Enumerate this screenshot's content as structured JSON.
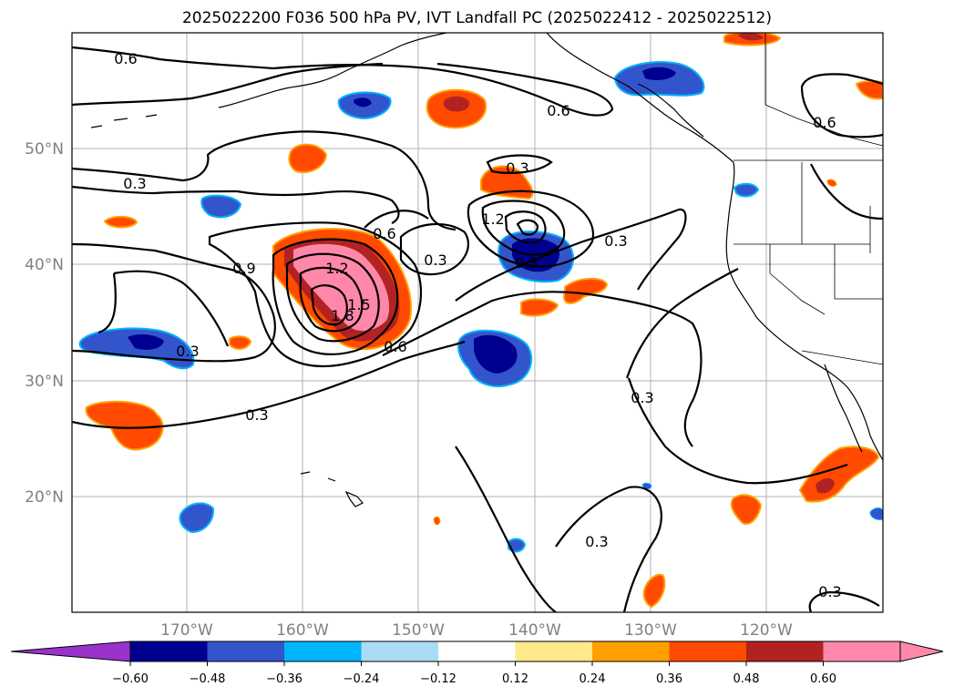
{
  "title": "2025022200 F036 500 hPa PV, IVT Landfall PC (2025022412 - 2025022512)",
  "map": {
    "lat_labels": [
      "50°N",
      "40°N",
      "30°N",
      "20°N"
    ],
    "lon_labels": [
      "170°W",
      "160°W",
      "150°W",
      "140°W",
      "130°W",
      "120°W"
    ],
    "grid": true,
    "contour_labels": [
      "0.6",
      "0.6",
      "0.6",
      "0.3",
      "0.3",
      "0.9",
      "1.2",
      "1.5",
      "1.8",
      "0.6",
      "0.6",
      "0.3",
      "1.2",
      "0.3",
      "0.3",
      "0.3",
      "0.3",
      "0.3",
      "0.3",
      "0.3"
    ]
  },
  "colorbar": {
    "ticks": [
      "−0.60",
      "−0.48",
      "−0.36",
      "−0.24",
      "−0.12",
      "0.12",
      "0.24",
      "0.36",
      "0.48",
      "0.60"
    ],
    "colors": [
      "#9933cc",
      "#000090",
      "#3355cc",
      "#00b4ff",
      "#aadcf5",
      "#ffffff",
      "#ffe98a",
      "#ffa000",
      "#ff4a00",
      "#b22222",
      "#ff88aa",
      "#ff88aa"
    ]
  }
}
